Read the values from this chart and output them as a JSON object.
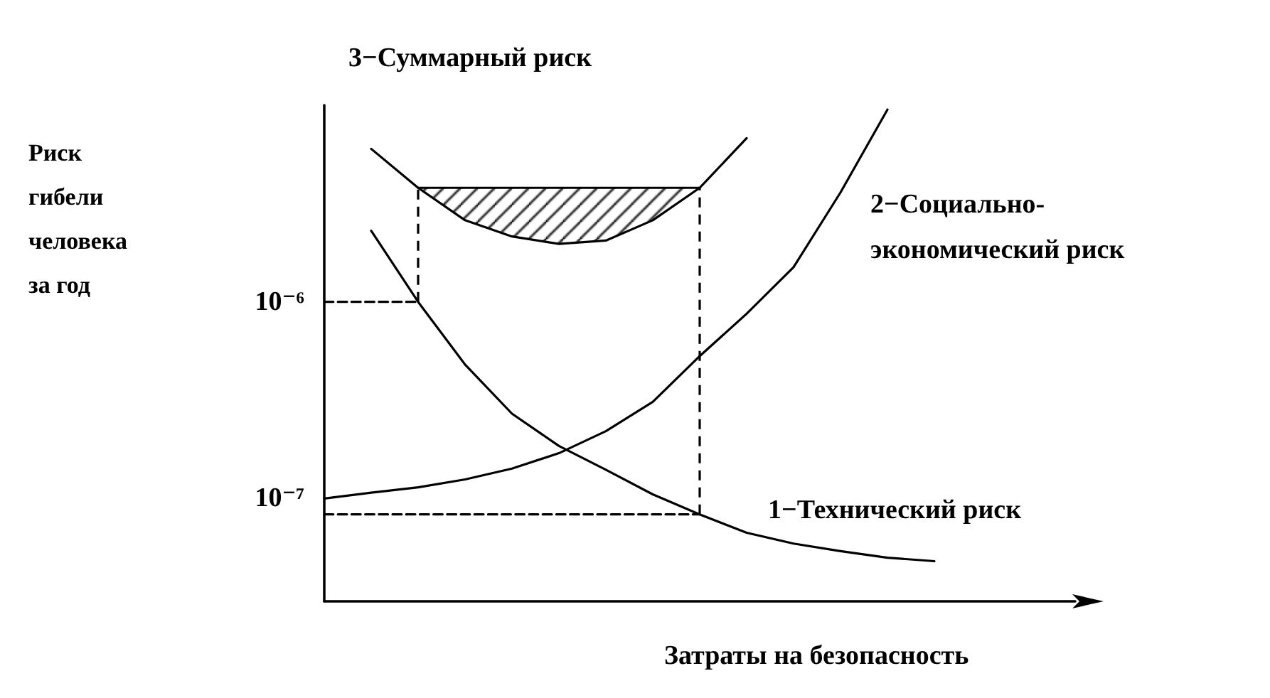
{
  "chart_data": {
    "type": "line",
    "xlabel": "Затраты на безопасность",
    "annotations": [
      "Риск гибели человека за год"
    ],
    "log": "y",
    "grid": false,
    "legend": false,
    "marker": "none",
    "categories": [
      null,
      null,
      null,
      null,
      null,
      null,
      null,
      null,
      null,
      null,
      null,
      null,
      null,
      null,
      null,
      null,
      null
    ],
    "ylim": [
      3e-08,
      1e-05
    ],
    "yticks": [
      {
        "value": 1e-06,
        "label": "10⁻⁶"
      },
      {
        "value": 1e-07,
        "label": "10⁻⁷"
      }
    ],
    "series": [
      {
        "name": "1−Технический риск",
        "color": "#000000",
        "values": [
          null,
          2.3e-06,
          1e-06,
          4.8e-07,
          2.7e-07,
          1.85e-07,
          1.4e-07,
          1.05e-07,
          8.3e-08,
          6.7e-08,
          5.9e-08,
          5.4e-08,
          5e-08,
          4.8e-08,
          null,
          null,
          null
        ]
      },
      {
        "name": "2−Социально-экономический риск",
        "color": "#000000",
        "values": [
          1e-07,
          1.07e-07,
          1.14e-07,
          1.25e-07,
          1.42e-07,
          1.7e-07,
          2.2e-07,
          3.1e-07,
          5.3e-07,
          8.7e-07,
          1.5e-06,
          3.6e-06,
          9.5e-06,
          null,
          null,
          null,
          null
        ]
      },
      {
        "name": "3−Суммарный риск",
        "color": "#000000",
        "values": [
          null,
          6e-06,
          3.8e-06,
          2.6e-06,
          2.15e-06,
          1.97e-06,
          2.05e-06,
          2.6e-06,
          3.8e-06,
          6.8e-06,
          null,
          null,
          null,
          null,
          null,
          null,
          null
        ]
      },
      {
        "color": "#000000",
        "values": [
          null,
          null,
          3.8e-06,
          3.8e-06,
          3.8e-06,
          3.8e-06,
          3.8e-06,
          3.8e-06,
          3.8e-06,
          null,
          null,
          null,
          null,
          null,
          null,
          null,
          null
        ],
        "upper": [
          null,
          null,
          3.8e-06,
          3.8e-06,
          3.8e-06,
          3.8e-06,
          3.8e-06,
          3.8e-06,
          3.8e-06,
          null,
          null,
          null,
          null,
          null,
          null,
          null,
          null
        ],
        "lower": [
          null,
          null,
          3.8e-06,
          2.6e-06,
          2.15e-06,
          1.97e-06,
          2.05e-06,
          2.6e-06,
          3.8e-06,
          null,
          null,
          null,
          null,
          null,
          null,
          null,
          null
        ]
      },
      {
        "color": "#000000",
        "line_style": "dashed",
        "values": [
          1e-06,
          1e-06,
          1e-06,
          null,
          null,
          null,
          null,
          null,
          null,
          null,
          null,
          null,
          null,
          null,
          null,
          null,
          null
        ]
      },
      {
        "color": "#000000",
        "line_style": "dashed",
        "values": [
          8.3e-08,
          8.3e-08,
          8.3e-08,
          8.3e-08,
          8.3e-08,
          8.3e-08,
          8.3e-08,
          8.3e-08,
          8.3e-08,
          null,
          null,
          null,
          null,
          null,
          null,
          null,
          null
        ]
      }
    ]
  }
}
